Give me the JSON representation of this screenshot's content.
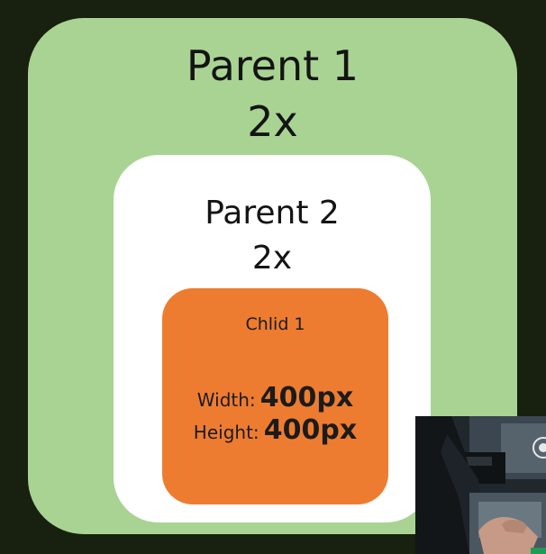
{
  "diagram": {
    "parent1": {
      "name": "Parent 1",
      "multiplier": "2x",
      "color": "#a9d393"
    },
    "parent2": {
      "name": "Parent 2",
      "multiplier": "2x",
      "color": "#ffffff"
    },
    "child": {
      "name": "Chlid 1",
      "width_label": "Width:",
      "width_value": "400px",
      "height_label": "Height:",
      "height_value": "400px",
      "color": "#ed7c31"
    }
  },
  "background_color": "#18200f",
  "video_overlay": {
    "icon": "webcam-presenter-thumbnail"
  }
}
